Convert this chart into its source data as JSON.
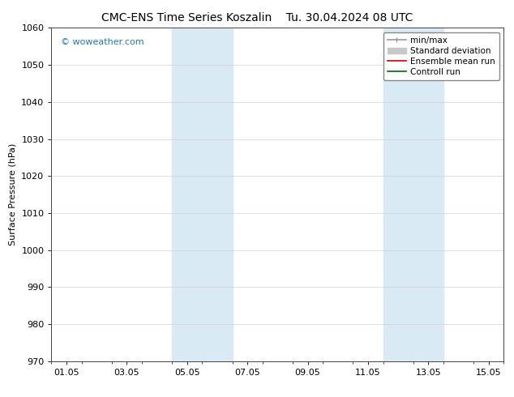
{
  "title_left": "CMC-ENS Time Series Koszalin",
  "title_right": "Tu. 30.04.2024 08 UTC",
  "ylabel": "Surface Pressure (hPa)",
  "ylim": [
    970,
    1060
  ],
  "yticks": [
    970,
    980,
    990,
    1000,
    1010,
    1020,
    1030,
    1040,
    1050,
    1060
  ],
  "xtick_labels": [
    "01.05",
    "03.05",
    "05.05",
    "07.05",
    "09.05",
    "11.05",
    "13.05",
    "15.05"
  ],
  "xtick_positions": [
    1,
    3,
    5,
    7,
    9,
    11,
    13,
    15
  ],
  "xlim": [
    0.5,
    15.5
  ],
  "shaded_bands": [
    {
      "xmin": 4.5,
      "xmax": 6.5,
      "color": "#daeaf5"
    },
    {
      "xmin": 11.5,
      "xmax": 13.5,
      "color": "#daeaf5"
    }
  ],
  "legend_entries": [
    {
      "label": "min/max",
      "color": "#999999",
      "lw": 1.2,
      "type": "line_with_caps"
    },
    {
      "label": "Standard deviation",
      "color": "#c8c8c8",
      "lw": 8,
      "type": "patch"
    },
    {
      "label": "Ensemble mean run",
      "color": "#cc0000",
      "lw": 1.2,
      "type": "line"
    },
    {
      "label": "Controll run",
      "color": "#006600",
      "lw": 1.2,
      "type": "line"
    }
  ],
  "watermark": "© woweather.com",
  "watermark_color": "#1a7abf",
  "background_color": "#ffffff",
  "plot_bg_color": "#ffffff",
  "title_fontsize": 10,
  "ylabel_fontsize": 8,
  "tick_fontsize": 8,
  "legend_fontsize": 7.5
}
